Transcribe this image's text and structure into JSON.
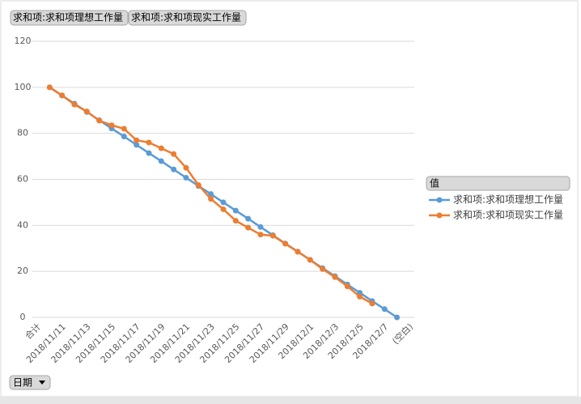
{
  "chart_data": {
    "type": "line",
    "filter_buttons": [
      "求和项:求和项理想工作量",
      "求和项:求和项现实工作量"
    ],
    "legend_title": "值",
    "axis_field_button": "日期",
    "categories": [
      "合计",
      null,
      "2018/11/11",
      null,
      "2018/11/13",
      null,
      "2018/11/15",
      null,
      "2018/11/17",
      null,
      "2018/11/19",
      null,
      "2018/11/21",
      null,
      "2018/11/23",
      null,
      "2018/11/25",
      null,
      "2018/11/27",
      null,
      "2018/11/29",
      null,
      "2018/12/1",
      null,
      "2018/12/3",
      null,
      "2018/12/5",
      null,
      "2018/12/7",
      null,
      "(空白)"
    ],
    "series": [
      {
        "name": "求和项:求和项理想工作量",
        "color": "#5b9bd5",
        "values": [
          null,
          100,
          96.4,
          92.9,
          89.3,
          85.7,
          82.1,
          78.6,
          75,
          71.4,
          67.9,
          64.3,
          60.7,
          57.1,
          53.6,
          50,
          46.4,
          42.9,
          39.3,
          35.7,
          32.1,
          28.6,
          25,
          21.4,
          17.9,
          14.3,
          10.7,
          7.1,
          3.6,
          0,
          null
        ]
      },
      {
        "name": "求和项:求和项现实工作量",
        "color": "#ed7d31",
        "values": [
          null,
          100,
          96.5,
          92.5,
          89.5,
          85.5,
          83.5,
          82,
          77,
          76,
          73.5,
          71,
          65,
          57.5,
          51.5,
          47,
          42,
          39,
          36,
          35.5,
          32,
          28.5,
          25,
          21,
          17.5,
          13.5,
          9,
          6,
          null,
          null,
          null
        ]
      }
    ],
    "ylim": [
      0,
      120
    ],
    "yticks": [
      0,
      20,
      40,
      60,
      80,
      100,
      120
    ],
    "grid": true,
    "legend": "right"
  }
}
